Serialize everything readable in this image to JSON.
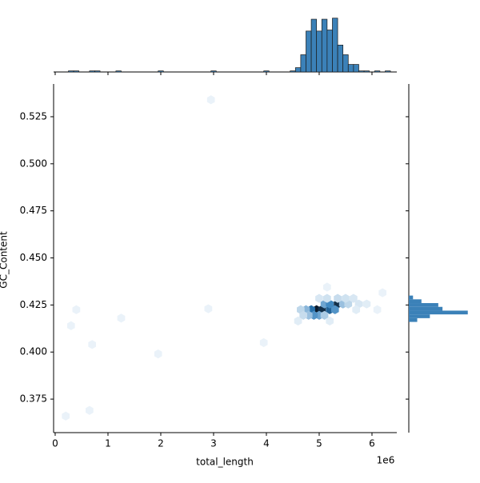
{
  "chart_data": [
    {
      "type": "hexbin",
      "xlabel": "total_length",
      "ylabel": "GC_Content",
      "x_offset_label": "1e6",
      "xlim": [
        -0.03,
        6.47
      ],
      "ylim": [
        0.3572,
        0.5424
      ],
      "xticks": [
        0,
        1,
        2,
        3,
        4,
        5,
        6
      ],
      "yticks": [
        0.375,
        {
          "value": 0.4,
          "label": "0.400"
        },
        0.425,
        {
          "value": 0.45,
          "label": "0.450"
        },
        0.475,
        {
          "value": 0.5,
          "label": "0.500"
        },
        0.525
      ],
      "colors": [
        "#f3f8fc",
        "#2b7bba",
        "#0b1a2a"
      ],
      "x": [
        5.35,
        4.95,
        5.05,
        4.85,
        5.2,
        5.3,
        4.75,
        4.65,
        5.1,
        5.2,
        5.45,
        5.55,
        5.0,
        4.9,
        4.8,
        5.1,
        4.7,
        5.35,
        5.5,
        5.65,
        5.0,
        5.15,
        5.75,
        5.9,
        4.6,
        5.2,
        5.7,
        6.1,
        6.2,
        5.15,
        0.4,
        0.3,
        0.7,
        0.2,
        0.65,
        1.25,
        1.95,
        2.95,
        3.95,
        2.9
      ],
      "y": [
        0.4255,
        0.4225,
        0.4225,
        0.4225,
        0.4225,
        0.4225,
        0.4225,
        0.4225,
        0.4255,
        0.4255,
        0.4255,
        0.4255,
        0.4195,
        0.4195,
        0.4195,
        0.4195,
        0.4195,
        0.4285,
        0.4285,
        0.4285,
        0.4285,
        0.4285,
        0.4255,
        0.4255,
        0.4165,
        0.4165,
        0.4225,
        0.4225,
        0.4315,
        0.4345,
        0.4225,
        0.414,
        0.404,
        0.366,
        0.369,
        0.418,
        0.399,
        0.534,
        0.405,
        0.423
      ],
      "counts": [
        40,
        45,
        40,
        25,
        28,
        18,
        12,
        6,
        15,
        20,
        10,
        6,
        15,
        18,
        10,
        8,
        5,
        5,
        4,
        3,
        3,
        4,
        3,
        2,
        2,
        2,
        2,
        1,
        1,
        1,
        1,
        1,
        1,
        1,
        1,
        1,
        1,
        1,
        1,
        1
      ]
    },
    {
      "type": "histogram",
      "orientation": "vertical",
      "xlim": [
        -0.03,
        6.47
      ],
      "ylim": [
        0,
        52
      ],
      "xticks": [
        0,
        1,
        2,
        3,
        4,
        5,
        6
      ],
      "color": "#3b81b8",
      "edgecolor": "#1a1a1a",
      "bins": [
        0.05,
        0.15,
        0.25,
        0.35,
        0.45,
        0.55,
        0.65,
        0.75,
        0.85,
        0.95,
        1.05,
        1.15,
        1.25,
        1.35,
        1.45,
        1.55,
        1.65,
        1.75,
        1.85,
        1.95,
        2.05,
        2.15,
        2.25,
        2.35,
        2.45,
        2.55,
        2.65,
        2.75,
        2.85,
        2.95,
        3.05,
        3.15,
        3.25,
        3.35,
        3.45,
        3.55,
        3.65,
        3.75,
        3.85,
        3.95,
        4.05,
        4.15,
        4.25,
        4.35,
        4.45,
        4.55,
        4.65,
        4.75,
        4.85,
        4.95,
        5.05,
        5.15,
        5.25,
        5.35,
        5.45,
        5.55,
        5.65,
        5.75,
        5.85,
        5.95,
        6.05,
        6.15,
        6.25,
        6.35
      ],
      "counts": [
        0,
        0,
        1,
        1,
        0,
        0,
        1,
        1,
        0,
        0,
        0,
        1,
        0,
        0,
        0,
        0,
        0,
        0,
        0,
        1,
        0,
        0,
        0,
        0,
        0,
        0,
        0,
        0,
        0,
        1,
        0,
        0,
        0,
        0,
        0,
        0,
        0,
        0,
        0,
        1,
        0,
        0,
        0,
        0,
        1,
        4,
        16,
        38,
        49,
        38,
        49,
        39,
        50,
        25,
        16,
        7,
        7,
        1,
        1,
        0,
        1,
        0,
        1
      ]
    },
    {
      "type": "histogram",
      "orientation": "horizontal",
      "ylim": [
        0.3572,
        0.5424
      ],
      "xlim": [
        0,
        75
      ],
      "yticks": [
        0.375,
        0.4,
        0.425,
        0.45,
        0.475,
        0.5,
        0.525
      ],
      "color": "#3b81b8",
      "bins": [
        0.416,
        0.418,
        0.42,
        0.422,
        0.424,
        0.426,
        0.428,
        0.43
      ],
      "counts": [
        10,
        25,
        70,
        40,
        35,
        15,
        5
      ]
    }
  ]
}
